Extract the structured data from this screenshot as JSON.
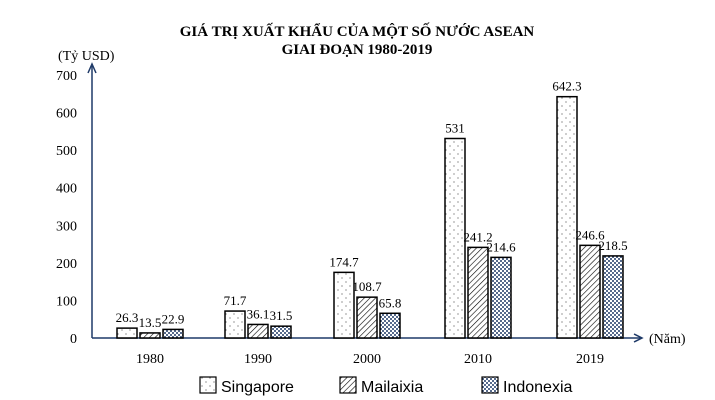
{
  "chart_data": {
    "type": "bar",
    "title": [
      "GIÁ TRỊ XUẤT KHẨU CỦA MỘT SỐ NƯỚC ASEAN",
      "GIAI ĐOẠN 1980-2019"
    ],
    "ylabel": "(Tỷ USD)",
    "xlabel": "(Năm)",
    "ylim": [
      0,
      700
    ],
    "yticks": [
      0,
      100,
      200,
      300,
      400,
      500,
      600,
      700
    ],
    "categories": [
      "1980",
      "1990",
      "2000",
      "2010",
      "2019"
    ],
    "series": [
      {
        "name": "Singapore",
        "pattern": "sparse-dots",
        "values": [
          26.3,
          71.7,
          174.7,
          531,
          642.3
        ],
        "labels": [
          "26.3",
          "71.7",
          "174.7",
          "531",
          "642.3"
        ]
      },
      {
        "name": "Mailaixia",
        "pattern": "diagonal-hatch",
        "values": [
          13.5,
          36.1,
          108.7,
          241.2,
          246.6
        ],
        "labels": [
          "13.5",
          "36.1",
          "108.7",
          "241.2",
          "246.6"
        ]
      },
      {
        "name": "Indonexia",
        "pattern": "dense-dots",
        "values": [
          22.9,
          31.5,
          65.8,
          214.6,
          218.5
        ],
        "labels": [
          "22.9",
          "31.5",
          "65.8",
          "214.6",
          "218.5"
        ]
      }
    ],
    "legend_position": "bottom",
    "grid": false,
    "axis_color": "#1f3a68",
    "dot_color": "#1f3a68"
  }
}
